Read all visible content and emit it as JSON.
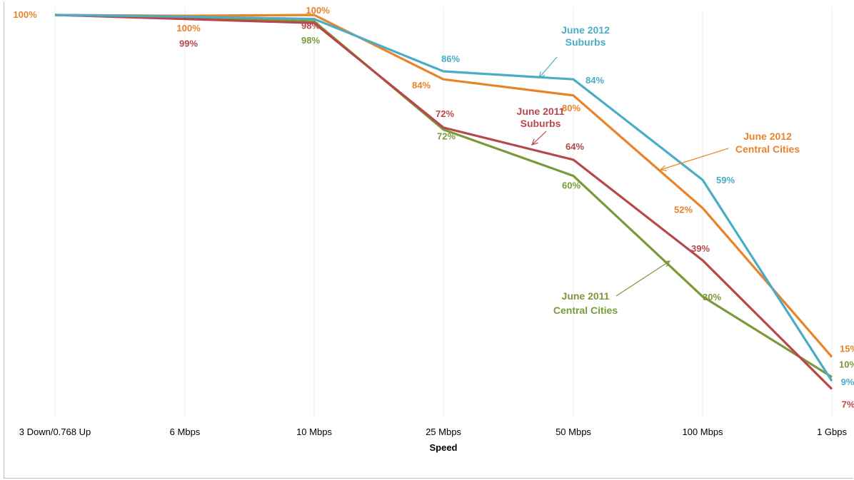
{
  "chart_data": {
    "type": "line",
    "title": "",
    "xlabel": "Speed",
    "ylabel": "",
    "ylim": [
      0,
      100
    ],
    "grid": "vertical",
    "categories": [
      "3 Down/0.768 Up",
      "6 Mbps",
      "10 Mbps",
      "25 Mbps",
      "50 Mbps",
      "100 Mbps",
      "1 Gbps"
    ],
    "series": [
      {
        "name": "June 2012 Suburbs",
        "color": "#4BACC6",
        "values": [
          100,
          99.6,
          99,
          86,
          84,
          59,
          9
        ],
        "labels": [
          "",
          "",
          "",
          "86%",
          "84%",
          "59%",
          "9%"
        ]
      },
      {
        "name": "June 2012 Central Cities",
        "color": "#E8832A",
        "values": [
          100,
          99.8,
          100,
          84,
          80,
          52,
          15
        ],
        "labels": [
          "100%",
          "100%",
          "100%",
          "84%",
          "80%",
          "52%",
          "15%"
        ]
      },
      {
        "name": "June 2011 Suburbs",
        "color": "#B8474A",
        "values": [
          100,
          99,
          98,
          72,
          64,
          39,
          7
        ],
        "labels": [
          "",
          "99%",
          "98%",
          "72%",
          "64%",
          "39%",
          "7%"
        ]
      },
      {
        "name": "June 2011 Central Cities",
        "color": "#7A9A3A",
        "values": [
          100,
          99.3,
          98.4,
          71.5,
          60,
          30,
          10
        ],
        "labels": [
          "",
          "",
          "98%",
          "72%",
          "60%",
          "30%",
          "10%"
        ]
      }
    ],
    "annotations": [
      {
        "line1": "June 2012",
        "line2": "Suburbs",
        "color": "#4BACC6"
      },
      {
        "line1": "June 2011",
        "line2": "Suburbs",
        "color": "#B8474A"
      },
      {
        "line1": "June 2012",
        "line2": "Central Cities",
        "color": "#E8832A"
      },
      {
        "line1": "June 2011",
        "line2": "Central Cities",
        "color": "#7A9A3A"
      }
    ]
  }
}
